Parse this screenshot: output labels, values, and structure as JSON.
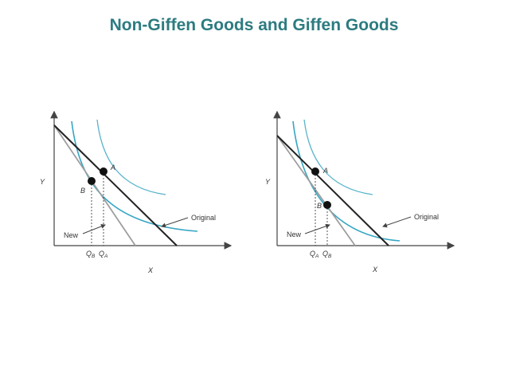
{
  "slide": {
    "title": "Non-Giffen Goods and Giffen Goods"
  },
  "colors": {
    "title": "#2c7b80",
    "indifference_curve": "#35a6c4",
    "original_budget_line": "#222222",
    "new_budget_line": "#9e9e9e",
    "axis": "#444444"
  },
  "panels": [
    {
      "y_axis_label": "Y",
      "x_axis_label": "X",
      "point_a_label": "A",
      "point_b_label": "B",
      "original_label": "Original",
      "new_label": "New",
      "q_first_main": "Q",
      "q_first_sub": "B",
      "q_second_main": "Q",
      "q_second_sub": "A"
    },
    {
      "y_axis_label": "Y",
      "x_axis_label": "X",
      "point_a_label": "A",
      "point_b_label": "B",
      "original_label": "Original",
      "new_label": "New",
      "q_first_main": "Q",
      "q_first_sub": "A",
      "q_second_main": "Q",
      "q_second_sub": "B"
    }
  ]
}
